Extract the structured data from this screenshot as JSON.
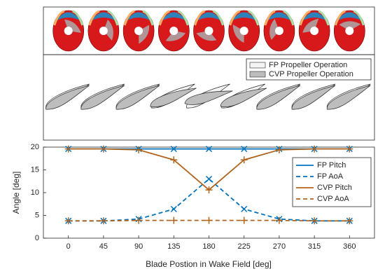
{
  "illustration": {
    "legend": [
      "FP Propeller Operation",
      "CVP Propeller Operation"
    ]
  },
  "chart_data": {
    "type": "line",
    "xlabel": "Blade Postion in Wake Field [deg]",
    "ylabel": "Angle [deg]",
    "x": [
      0,
      45,
      90,
      135,
      180,
      225,
      270,
      315,
      360
    ],
    "xlim": [
      -32,
      392
    ],
    "xticks": [
      0,
      45,
      90,
      135,
      180,
      225,
      270,
      315,
      360
    ],
    "ylim": [
      0,
      20
    ],
    "yticks": [
      0,
      5,
      10,
      15,
      20
    ],
    "grid": false,
    "legend": "right",
    "series": [
      {
        "name": "FP Pitch",
        "color": "#0072bd",
        "dash": false,
        "marker": "x",
        "values": [
          19.6,
          19.6,
          19.6,
          19.6,
          19.6,
          19.6,
          19.6,
          19.6,
          19.6
        ]
      },
      {
        "name": "FP AoA",
        "color": "#0072bd",
        "dash": true,
        "marker": "x",
        "values": [
          3.8,
          3.8,
          4.2,
          6.4,
          13,
          6.4,
          4.2,
          3.8,
          3.8
        ]
      },
      {
        "name": "CVP Pitch",
        "color": "#b0641e",
        "dash": false,
        "marker": "+",
        "values": [
          19.6,
          19.6,
          19.4,
          17.2,
          10.6,
          17.2,
          19.4,
          19.6,
          19.6
        ]
      },
      {
        "name": "CVP AoA",
        "color": "#b0641e",
        "dash": true,
        "marker": "+",
        "values": [
          3.8,
          3.8,
          3.9,
          3.9,
          3.9,
          3.9,
          3.9,
          3.8,
          3.8
        ]
      }
    ]
  }
}
